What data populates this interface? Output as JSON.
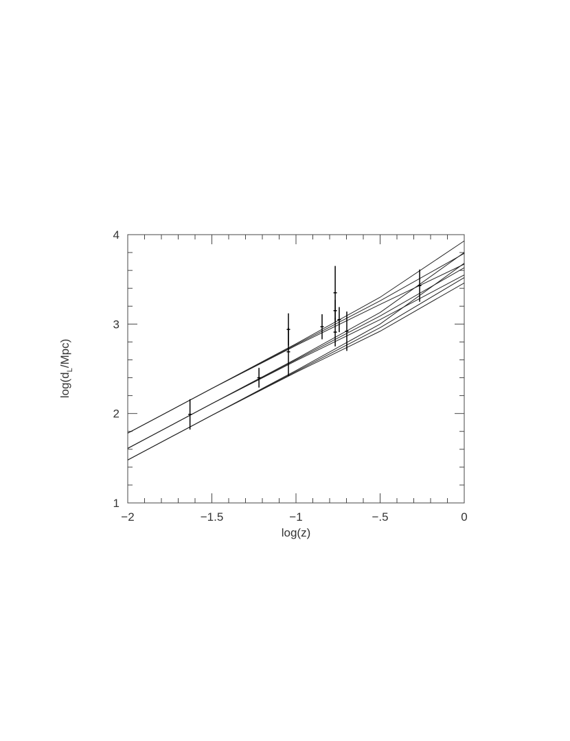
{
  "chart_data": {
    "type": "scatter",
    "x_label": "log(z)",
    "y_label_parts": [
      "log(d",
      "L",
      "/Mpc)"
    ],
    "xlim": [
      -2,
      0
    ],
    "ylim": [
      1,
      4
    ],
    "xticks": [
      {
        "value": -2,
        "label": "−2"
      },
      {
        "value": -1.5,
        "label": "−1.5"
      },
      {
        "value": -1,
        "label": "−1"
      },
      {
        "value": -0.5,
        "label": "−.5"
      },
      0
    ],
    "yticks": [
      1,
      2,
      3,
      4
    ],
    "x_minor_ticks": [
      -1.9,
      -1.8,
      -1.7,
      -1.6,
      -1.4,
      -1.3,
      -1.2,
      -1.1,
      -0.9,
      -0.8,
      -0.7,
      -0.6,
      -0.4,
      -0.3,
      -0.2,
      -0.1
    ],
    "y_minor_ticks": [
      1.2,
      1.4,
      1.6,
      1.8,
      2.2,
      2.4,
      2.6,
      2.8,
      3.2,
      3.4,
      3.6,
      3.8
    ],
    "color": "#000000",
    "points": {
      "x": [
        -1.63,
        -1.22,
        -1.045,
        -1.045,
        -0.845,
        -0.767,
        -0.767,
        -0.767,
        -0.743,
        -0.698,
        -0.265
      ],
      "values": [
        1.99,
        2.4,
        2.94,
        2.69,
        2.97,
        3.35,
        3.15,
        2.91,
        3.05,
        2.92,
        3.43
      ],
      "errors": [
        0.17,
        0.11,
        0.18,
        0.27,
        0.14,
        0.3,
        0.12,
        0.16,
        0.14,
        0.22,
        0.18
      ]
    },
    "line_x": [
      -2,
      -1.5,
      -1,
      -0.5,
      0
    ],
    "lines": [
      {
        "values": [
          1.78,
          2.28,
          2.78,
          3.3,
          3.93
        ]
      },
      {
        "values": [
          1.78,
          2.28,
          2.77,
          3.26,
          3.79
        ]
      },
      {
        "values": [
          1.78,
          2.28,
          2.76,
          3.22,
          3.67
        ]
      },
      {
        "values": [
          1.61,
          2.11,
          2.61,
          3.13,
          3.8
        ]
      },
      {
        "values": [
          1.61,
          2.11,
          2.6,
          3.09,
          3.63
        ]
      },
      {
        "values": [
          1.61,
          2.11,
          2.59,
          3.05,
          3.55
        ]
      },
      {
        "values": [
          1.48,
          1.98,
          2.48,
          3.0,
          3.68
        ]
      },
      {
        "values": [
          1.48,
          1.98,
          2.47,
          2.96,
          3.52
        ]
      },
      {
        "values": [
          1.48,
          1.98,
          2.46,
          2.92,
          3.46
        ]
      }
    ]
  }
}
